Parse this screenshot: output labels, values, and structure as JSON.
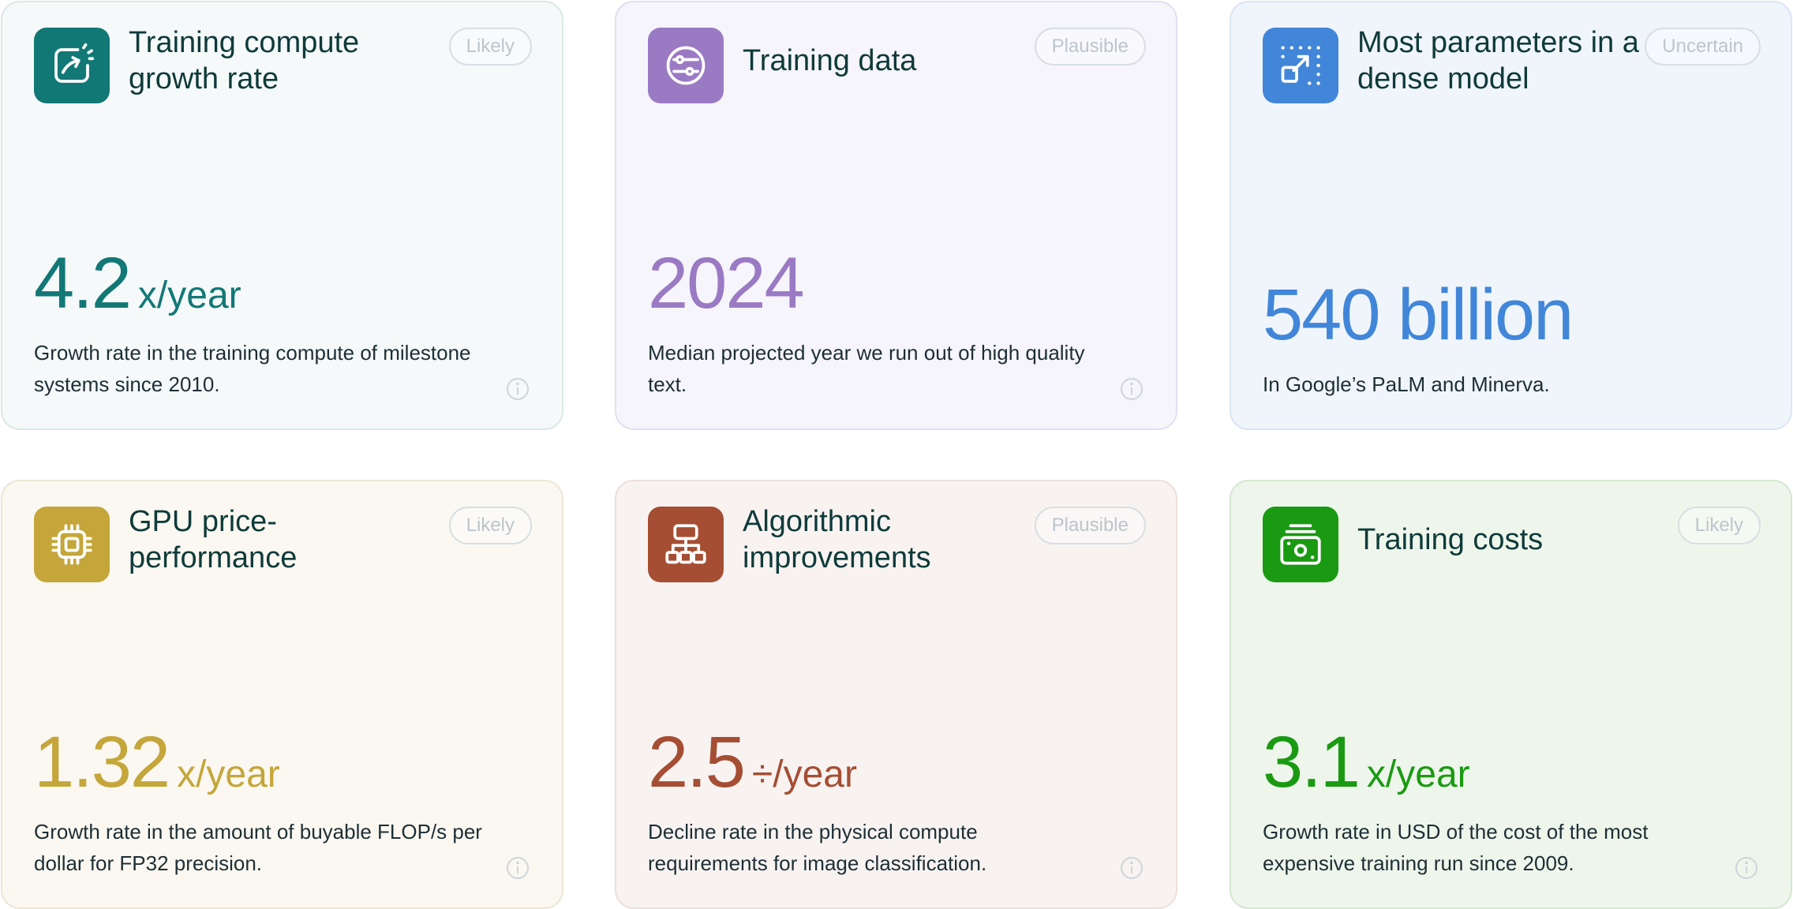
{
  "cards": [
    {
      "title": "Training compute growth rate",
      "badge": "Likely",
      "value": "4.2",
      "unit": "x/year",
      "description": "Growth rate in the training compute of milestone systems since 2010.",
      "icon": "chart-arrow-icon",
      "accent_color": "#127876",
      "background_color": "#f5f9f9",
      "border_color": "#dbe8e8"
    },
    {
      "title": "Training data",
      "badge": "Plausible",
      "value": "2024",
      "unit": "",
      "description": "Median projected year we run out of high quality text.",
      "icon": "data-sliders-icon",
      "accent_color": "#9b7ac4",
      "background_color": "#f6f5fb",
      "border_color": "#e3dfee"
    },
    {
      "title": "Most parameters in a dense model",
      "badge": "Uncertain",
      "value": "540 billion",
      "unit": "",
      "description": "In Google’s PaLM and Minerva.",
      "icon": "expand-arrow-icon",
      "accent_color": "#4186d8",
      "background_color": "#f0f5fc",
      "border_color": "#dbe5f3"
    },
    {
      "title": "GPU price-performance",
      "badge": "Likely",
      "value": "1.32",
      "unit": "x/year",
      "description": "Growth rate in the amount of buyable FLOP/s per dollar for FP32 precision.",
      "icon": "chip-icon",
      "accent_color": "#c4a63a",
      "background_color": "#fbf8f1",
      "border_color": "#ede6d4"
    },
    {
      "title": "Algorithmic improvements",
      "badge": "Plausible",
      "value": "2.5",
      "unit": "÷/year",
      "description": "Decline rate in the physical compute requirements for image classification.",
      "icon": "hierarchy-icon",
      "accent_color": "#a54e33",
      "background_color": "#f8f3f1",
      "border_color": "#ebdfda"
    },
    {
      "title": "Training costs",
      "badge": "Likely",
      "value": "3.1",
      "unit": "x/year",
      "description": "Growth rate in USD of the cost of the most expensive training run since 2009.",
      "icon": "money-stack-icon",
      "accent_color": "#1a9a12",
      "background_color": "#eef6ec",
      "border_color": "#d5e8d1"
    }
  ]
}
